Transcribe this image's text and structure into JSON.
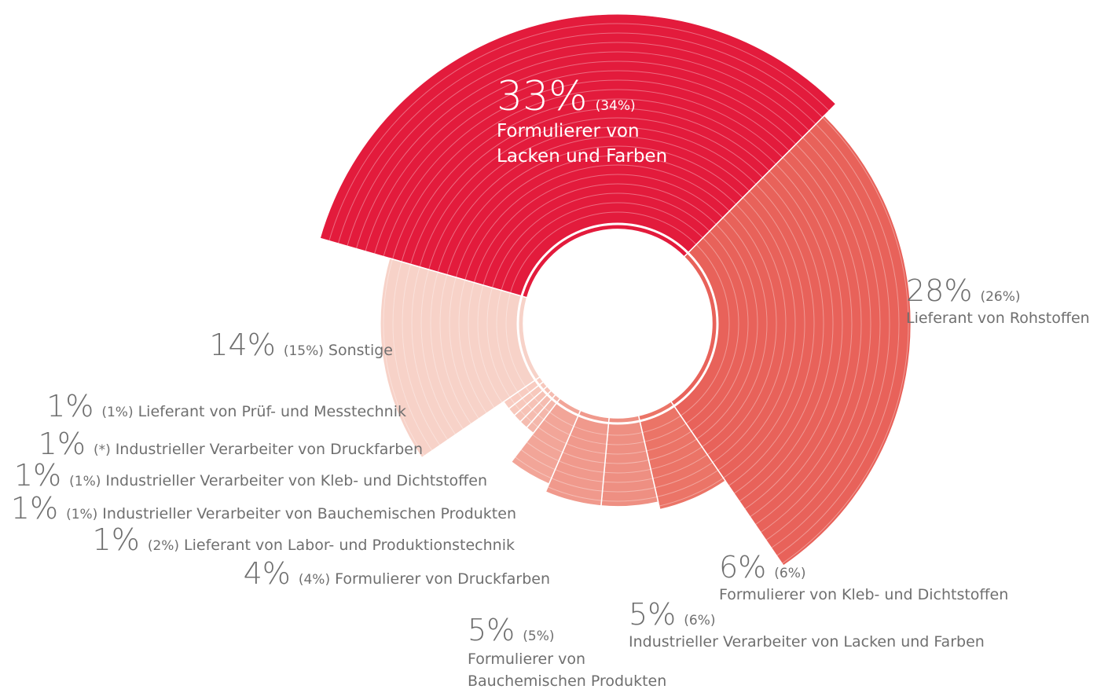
{
  "chart_data": {
    "type": "polar-donut",
    "categories": [
      "Formulierer von Lacken und Farben",
      "Lieferant von Rohstoffen",
      "Formulierer von Kleb- und Dichtstoffen",
      "Industrieller Verarbeiter von Lacken und Farben",
      "Formulierer von Bauchemischen Produkten",
      "Formulierer von Druckfarben",
      "Lieferant von Labor- und Produktionstechnik",
      "Industrieller Verarbeiter von Bauchemischen Produkten",
      "Industrieller Verarbeiter von Kleb- und Dichtstoffen",
      "Industrieller Verarbeiter von Druckfarben",
      "Lieferant von Prüf- und Messtechnik",
      "Sonstige"
    ],
    "values": [
      33,
      28,
      6,
      5,
      5,
      4,
      1,
      1,
      1,
      1,
      1,
      14
    ],
    "value_labels": [
      "33%",
      "28%",
      "6%",
      "5%",
      "5%",
      "4%",
      "1%",
      "1%",
      "1%",
      "1%",
      "1%",
      "14%"
    ],
    "previous_values": [
      34,
      26,
      6,
      6,
      5,
      4,
      2,
      1,
      1,
      null,
      1,
      15
    ],
    "previous_value_labels": [
      "(34%)",
      "(26%)",
      "(6%)",
      "(6%)",
      "(5%)",
      "(4%)",
      "(2%)",
      "(1%)",
      "(1%)",
      "(*)",
      "(1%)",
      "(15%)"
    ],
    "colors": [
      "#e31b3c",
      "#e8625a",
      "#eb7467",
      "#ee8f82",
      "#f0998c",
      "#f2a598",
      "#f4b7ab",
      "#f5bcb0",
      "#f6c2b6",
      "#f7c8bc",
      "#f8ccc1",
      "#f7d2c8"
    ]
  }
}
